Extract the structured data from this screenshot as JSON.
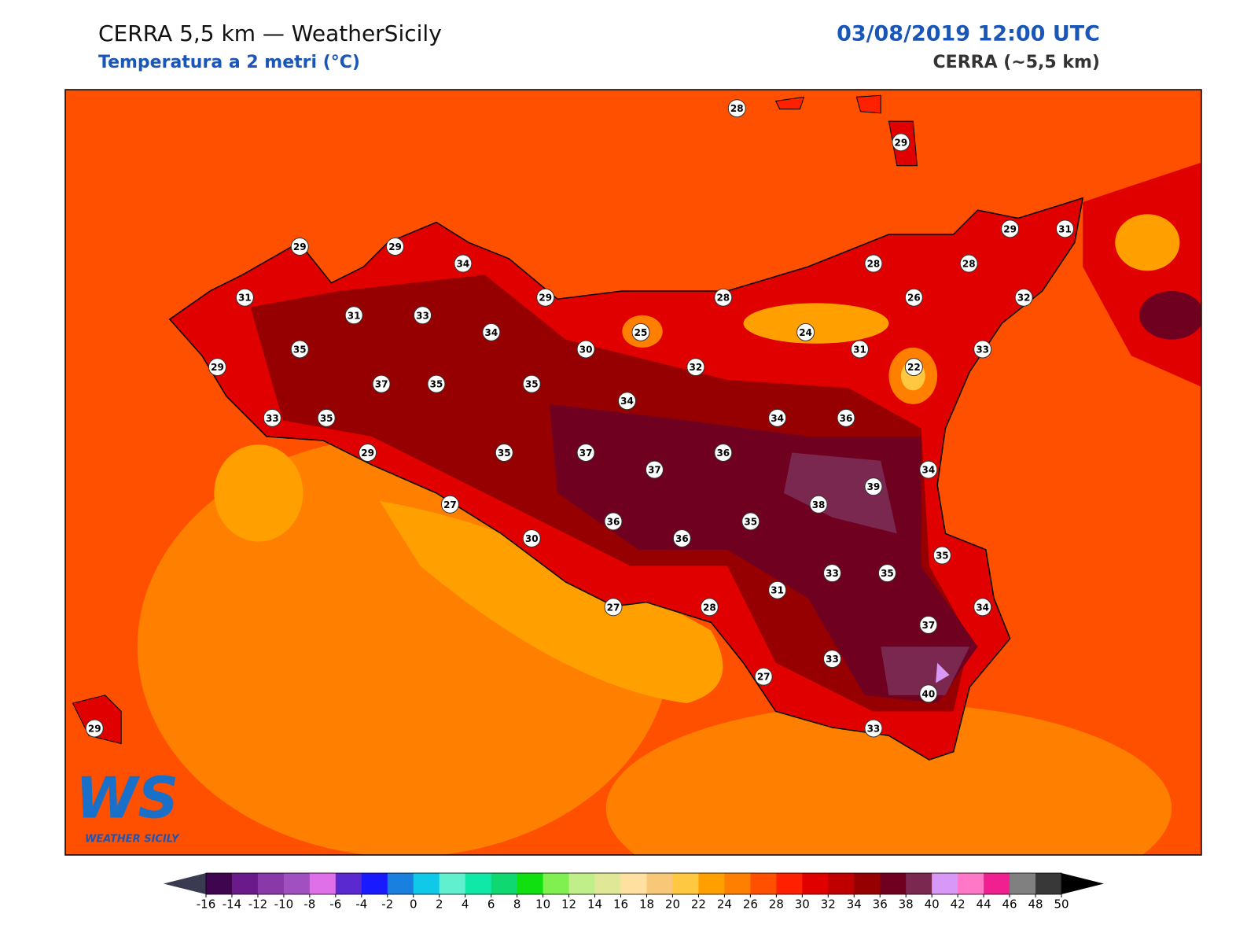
{
  "header": {
    "title": "CERRA 5,5 km — WeatherSicily",
    "subtitle": "Temperatura a 2 metri (°C)",
    "datetime": "03/08/2019 12:00 UTC",
    "model": "CERRA (~5,5 km)"
  },
  "stations": [
    28,
    29,
    29,
    29,
    34,
    31,
    31,
    33,
    29,
    28,
    28,
    28,
    29,
    31,
    26,
    32,
    35,
    29,
    34,
    30,
    25,
    24,
    31,
    33,
    22,
    32,
    37,
    35,
    35,
    34,
    33,
    35,
    34,
    36,
    29,
    35,
    37,
    37,
    36,
    34,
    39,
    27,
    38,
    36,
    35,
    30,
    36,
    35,
    33,
    35,
    31,
    27,
    28,
    34,
    37,
    33,
    27,
    40,
    33,
    29
  ],
  "colorbar": {
    "ticks": [
      -16,
      -14,
      -12,
      -10,
      -8,
      -6,
      -4,
      -2,
      0,
      2,
      4,
      6,
      8,
      10,
      12,
      14,
      16,
      18,
      20,
      22,
      24,
      26,
      28,
      30,
      32,
      34,
      36,
      38,
      40,
      42,
      44,
      46,
      48,
      50
    ],
    "colors": [
      "#40054f",
      "#6a1a8a",
      "#8a3aa8",
      "#a050c0",
      "#e070e8",
      "#5a2ad0",
      "#1a1aff",
      "#1a80e0",
      "#10c8e8",
      "#60f0d0",
      "#10e8a8",
      "#10d870",
      "#10e010",
      "#80f050",
      "#c0ee88",
      "#e0e898",
      "#ffe0a0",
      "#f8c878",
      "#ffc840",
      "#ffa000",
      "#ff8000",
      "#ff5000",
      "#ff2000",
      "#e00000",
      "#c00000",
      "#960000",
      "#700020",
      "#7a2850",
      "#d898f8",
      "#ff78c8",
      "#f02090",
      "#808080",
      "#383838"
    ],
    "under_color": "#3a3a50",
    "over_color": "#000000"
  },
  "logo": {
    "mark": "WS",
    "caption": "WEATHER SICILY"
  }
}
